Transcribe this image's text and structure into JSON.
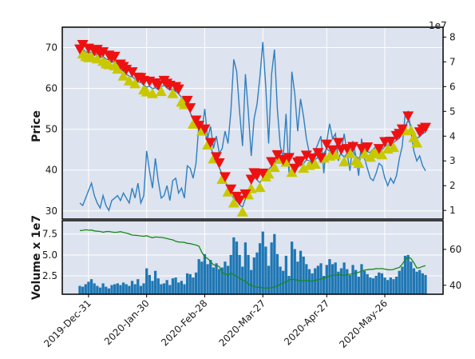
{
  "colors": {
    "panel_bg": "#dde3ef",
    "grid": "#ffffff",
    "price_line": "#2f7fbf",
    "volume_bar": "#1f77b4",
    "right_line": "#2f7fbf",
    "green_line": "#168a16",
    "up_marker": "#c8c800",
    "down_marker": "#ee1111",
    "frame": "#000000"
  },
  "chart_data": [
    {
      "type": "line",
      "panel": "price",
      "ylabel": "Price",
      "ylim": [
        28,
        75
      ],
      "y_ticks": [
        30,
        40,
        50,
        60,
        70
      ],
      "grid": true,
      "x_ticks": [
        "2019-Dec-31",
        "2020-Jan-30",
        "2020-Feb-28",
        "2020-Mar-27",
        "2020-Apr-27",
        "2020-May-26"
      ],
      "x_tick_index": [
        3,
        23,
        43,
        63,
        85,
        105
      ],
      "n_points": 120,
      "series": [
        {
          "values": [
            68.5,
            69.6,
            69.0,
            68.7,
            68.9,
            68.1,
            68.4,
            67.6,
            67.8,
            67.2,
            67.0,
            66.4,
            66.7,
            65.9,
            64.8,
            64.2,
            63.5,
            63.0,
            62.9,
            62.3,
            61.6,
            61.5,
            60.8,
            60.3,
            60.6,
            59.9,
            60.2,
            59.7,
            60.4,
            60.8,
            60.1,
            59.6,
            59.9,
            59.3,
            58.7,
            57.8,
            57.2,
            55.9,
            54.1,
            52.4,
            51.1,
            49.8,
            50.7,
            48.9,
            47.3,
            45.6,
            43.9,
            42.1,
            40.6,
            38.9,
            37.2,
            35.8,
            34.2,
            33.1,
            32.4,
            31.5,
            30.9,
            33.0,
            35.1,
            36.6,
            38.2,
            37.6,
            36.9,
            38.1,
            39.5,
            40.2,
            40.9,
            41.8,
            42.6,
            43.8,
            41.4,
            43.1,
            41.9,
            40.6,
            39.3,
            40.8,
            41.1,
            41.6,
            42.5,
            42.3,
            41.8,
            42.6,
            43.1,
            41.9,
            44.1,
            45.2,
            44.6,
            43.8,
            44.9,
            45.6,
            43.9,
            43.2,
            44.1,
            45.2,
            44.6,
            43.4,
            42.8,
            44.1,
            45.1,
            44.5,
            44.3,
            45.2,
            45.7,
            44.1,
            44.9,
            45.8,
            46.3,
            45.9,
            46.7,
            47.3,
            47.8,
            48.9,
            50.8,
            52.1,
            50.9,
            49.1,
            47.8,
            48.2,
            48.9,
            49.3
          ]
        }
      ],
      "up_markers": [
        1,
        2,
        3,
        4,
        6,
        8,
        9,
        10,
        12,
        13,
        15,
        17,
        19,
        22,
        23,
        25,
        28,
        32,
        35,
        36,
        39,
        42,
        44,
        46,
        49,
        51,
        53,
        56,
        58,
        59,
        62,
        64,
        65,
        67,
        69,
        71,
        73,
        77,
        79,
        81,
        84,
        86,
        88,
        91,
        93,
        95,
        96,
        98,
        100,
        101,
        102,
        104,
        106,
        108,
        112,
        114,
        115,
        116
      ],
      "down_markers": [
        0,
        1,
        3,
        5,
        6,
        7,
        8,
        10,
        11,
        12,
        14,
        15,
        16,
        18,
        20,
        21,
        22,
        24,
        26,
        27,
        29,
        30,
        31,
        33,
        34,
        37,
        38,
        40,
        41,
        43,
        45,
        47,
        48,
        50,
        52,
        54,
        55,
        57,
        59,
        60,
        61,
        63,
        66,
        68,
        70,
        72,
        74,
        75,
        76,
        78,
        80,
        82,
        83,
        85,
        87,
        89,
        90,
        92,
        94,
        97,
        99,
        103,
        105,
        107,
        109,
        110,
        111,
        113,
        117,
        118,
        119
      ]
    },
    {
      "type": "line",
      "panel": "price-right-axis",
      "axis_label": "1e7",
      "ylim": [
        0.65,
        8.4
      ],
      "y_ticks": [
        1,
        2,
        3,
        4,
        5,
        6,
        7,
        8
      ],
      "series": [
        {
          "values": [
            1.3,
            1.2,
            1.5,
            1.8,
            2.1,
            1.6,
            1.3,
            1.1,
            1.6,
            1.2,
            1.0,
            1.4,
            1.5,
            1.6,
            1.4,
            1.7,
            1.5,
            1.3,
            1.9,
            1.5,
            2.1,
            1.3,
            1.6,
            3.4,
            2.6,
            1.9,
            3.1,
            2.2,
            1.5,
            1.6,
            2.0,
            1.4,
            2.2,
            2.3,
            1.7,
            1.9,
            1.5,
            2.8,
            2.7,
            2.3,
            2.9,
            4.5,
            4.2,
            5.1,
            3.9,
            4.4,
            3.5,
            4.0,
            3.3,
            3.5,
            4.2,
            3.7,
            5.0,
            7.1,
            6.6,
            5.0,
            3.6,
            6.5,
            5.0,
            3.2,
            4.7,
            5.3,
            6.4,
            7.8,
            6.0,
            3.7,
            6.5,
            7.5,
            5.1,
            3.6,
            3.1,
            4.9,
            2.5,
            6.6,
            5.7,
            4.2,
            5.5,
            4.8,
            3.9,
            3.3,
            2.8,
            3.4,
            3.7,
            4.0,
            2.5,
            3.8,
            4.5,
            3.9,
            4.1,
            3.0,
            3.4,
            4.1,
            3.3,
            2.6,
            3.8,
            3.2,
            2.4,
            3.9,
            3.1,
            2.7,
            2.3,
            2.2,
            2.5,
            2.9,
            2.8,
            2.3,
            2.0,
            2.3,
            2.1,
            2.4,
            3.1,
            3.6,
            4.9,
            5.0,
            4.2,
            3.4,
            3.0,
            3.2,
            2.8,
            2.6
          ]
        }
      ]
    },
    {
      "type": "bar",
      "panel": "volume",
      "ylabel": "Volume x 1e7",
      "ylim": [
        0.3,
        9.1
      ],
      "y_ticks": [
        2.5,
        5.0,
        7.5
      ],
      "y_tick_labels": [
        "2.5",
        "5.0",
        "7.5"
      ],
      "series": [
        {
          "values": [
            1.3,
            1.2,
            1.5,
            1.8,
            2.1,
            1.6,
            1.3,
            1.1,
            1.6,
            1.2,
            1.0,
            1.4,
            1.5,
            1.6,
            1.4,
            1.7,
            1.5,
            1.3,
            1.9,
            1.5,
            2.1,
            1.3,
            1.6,
            3.4,
            2.6,
            1.9,
            3.1,
            2.2,
            1.5,
            1.6,
            2.0,
            1.4,
            2.2,
            2.3,
            1.7,
            1.9,
            1.5,
            2.8,
            2.7,
            2.3,
            2.9,
            4.5,
            4.2,
            5.1,
            3.9,
            4.4,
            3.5,
            4.0,
            3.3,
            3.5,
            4.2,
            3.7,
            5.0,
            7.1,
            6.6,
            5.0,
            3.6,
            6.5,
            5.0,
            3.2,
            4.7,
            5.3,
            6.4,
            7.8,
            6.0,
            3.7,
            6.5,
            7.5,
            5.1,
            3.6,
            3.1,
            4.9,
            2.5,
            6.6,
            5.7,
            4.2,
            5.5,
            4.8,
            3.9,
            3.3,
            2.8,
            3.4,
            3.7,
            4.0,
            2.5,
            3.8,
            4.5,
            3.9,
            4.1,
            3.0,
            3.4,
            4.1,
            3.3,
            2.6,
            3.8,
            3.2,
            2.4,
            3.9,
            3.1,
            2.7,
            2.3,
            2.2,
            2.5,
            2.9,
            2.8,
            2.3,
            2.0,
            2.3,
            2.1,
            2.4,
            3.1,
            3.6,
            4.9,
            5.0,
            4.2,
            3.4,
            3.0,
            3.2,
            2.8,
            2.6
          ]
        }
      ]
    },
    {
      "type": "line",
      "panel": "volume-right-axis",
      "ylim": [
        35,
        76
      ],
      "y_ticks": [
        40,
        60
      ],
      "series": [
        {
          "values": [
            70.5,
            70.6,
            70.9,
            70.7,
            70.8,
            70.3,
            70.1,
            70.0,
            69.6,
            69.9,
            70.0,
            69.7,
            69.5,
            69.6,
            69.9,
            69.4,
            69.1,
            68.6,
            68.0,
            67.9,
            67.7,
            67.5,
            67.3,
            67.6,
            67.0,
            66.5,
            66.9,
            66.8,
            66.7,
            66.4,
            66.0,
            65.6,
            65.3,
            64.5,
            64.1,
            64.0,
            63.9,
            63.4,
            63.2,
            62.8,
            62.4,
            61.8,
            58.4,
            55.8,
            54.9,
            53.3,
            51.4,
            50.9,
            50.4,
            47.2,
            46.2,
            45.7,
            46.8,
            45.9,
            44.9,
            44.0,
            42.8,
            42.5,
            40.6,
            40.0,
            39.4,
            38.9,
            38.8,
            38.6,
            38.4,
            38.5,
            38.6,
            39.1,
            39.7,
            40.5,
            41.4,
            41.8,
            43.0,
            43.4,
            43.1,
            42.9,
            42.3,
            42.6,
            42.6,
            42.3,
            42.4,
            42.6,
            43.2,
            43.5,
            43.9,
            44.6,
            45.1,
            45.5,
            45.6,
            45.9,
            45.8,
            45.3,
            45.9,
            46.2,
            46.4,
            46.9,
            47.2,
            47.9,
            48.5,
            48.7,
            48.9,
            48.9,
            49.3,
            49.2,
            49.3,
            49.0,
            48.7,
            48.6,
            48.8,
            49.5,
            49.9,
            51.8,
            54.2,
            55.7,
            54.9,
            52.6,
            49.6,
            49.8,
            50.5,
            50.9
          ]
        }
      ]
    }
  ]
}
